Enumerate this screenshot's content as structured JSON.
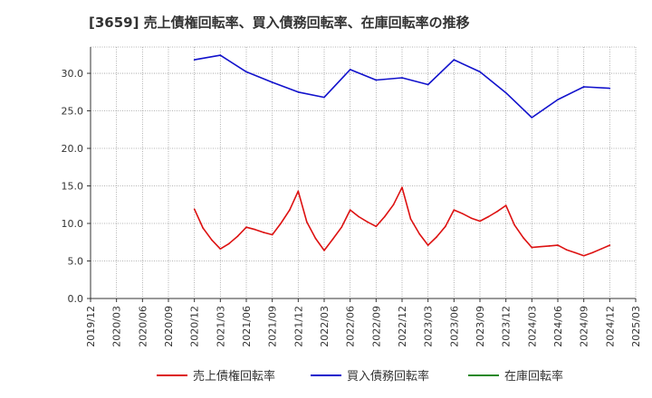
{
  "chart_data": {
    "type": "line",
    "title": "[3659]  売上債権回転率、買入債務回転率、在庫回転率の推移",
    "xlabel": "",
    "ylabel": "",
    "ylim": [
      0,
      33.5
    ],
    "yticks": [
      "0.0",
      "5.0",
      "10.0",
      "15.0",
      "20.0",
      "25.0",
      "30.0"
    ],
    "ytick_values": [
      0,
      5,
      10,
      15,
      20,
      25,
      30
    ],
    "x_ticks": [
      "2019/12",
      "2020/03",
      "2020/06",
      "2020/09",
      "2020/12",
      "2021/03",
      "2021/06",
      "2021/09",
      "2021/12",
      "2022/03",
      "2022/06",
      "2022/09",
      "2022/12",
      "2023/03",
      "2023/06",
      "2023/09",
      "2023/12",
      "2024/03",
      "2024/06",
      "2024/09",
      "2024/12",
      "2025/03"
    ],
    "grid": true,
    "legend_position": "bottom",
    "colors": {
      "receivables": "#dd1111",
      "payables": "#1111cc",
      "inventory": "#228822",
      "grid": "#999999",
      "axis": "#333333"
    },
    "series": [
      {
        "name": "売上債権回転率",
        "color": "#dd1111",
        "x": [
          4,
          4.33,
          4.67,
          5,
          5.33,
          5.67,
          6,
          6.33,
          6.67,
          7,
          7.33,
          7.67,
          8,
          8.33,
          8.67,
          9,
          9.33,
          9.67,
          10,
          10.33,
          10.67,
          11,
          11.33,
          11.67,
          12,
          12.33,
          12.67,
          13,
          13.33,
          13.67,
          14,
          14.33,
          14.67,
          15,
          15.33,
          15.67,
          16,
          16.33,
          16.67,
          17,
          17.33,
          17.67,
          18,
          18.33,
          18.67,
          19,
          19.33,
          19.67,
          20
        ],
        "values": [
          11.9,
          9.4,
          7.8,
          6.6,
          7.3,
          8.3,
          9.5,
          9.2,
          8.8,
          8.5,
          10.0,
          11.8,
          14.3,
          10.2,
          8.0,
          6.4,
          7.9,
          9.5,
          11.8,
          10.9,
          10.2,
          9.6,
          10.9,
          12.5,
          14.8,
          10.6,
          8.6,
          7.1,
          8.2,
          9.6,
          11.8,
          11.3,
          10.7,
          10.3,
          10.9,
          11.6,
          12.4,
          9.8,
          8.1,
          6.8,
          6.9,
          7.0,
          7.1,
          6.5,
          6.1,
          5.7,
          6.1,
          6.6,
          7.1
        ]
      },
      {
        "name": "買入債務回転率",
        "color": "#1111cc",
        "x": [
          4,
          5,
          6,
          7,
          8,
          9,
          10,
          11,
          12,
          13,
          14,
          15,
          16,
          17,
          18,
          19,
          20
        ],
        "values": [
          31.8,
          32.4,
          30.2,
          28.8,
          27.5,
          26.8,
          30.5,
          29.1,
          29.4,
          28.5,
          31.8,
          30.2,
          27.4,
          24.1,
          26.5,
          28.2,
          28.0
        ]
      },
      {
        "name": "在庫回転率",
        "color": "#228822",
        "x": [],
        "values": []
      }
    ]
  }
}
